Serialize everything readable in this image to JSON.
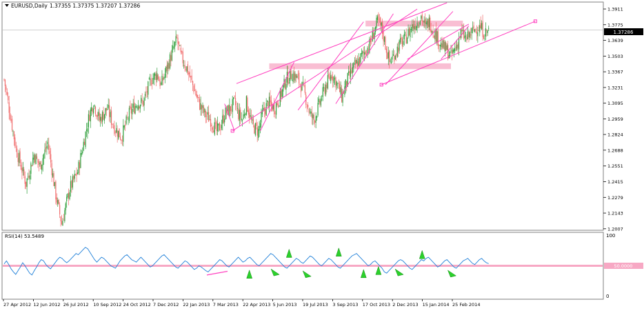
{
  "header": {
    "symbol_label": "EURUSD,Daily",
    "ohlc_text": "1.37355 1.37375 1.37207 1.37286"
  },
  "current_price_label": "1.37286",
  "rsi": {
    "label": "RSI(14) 53.5489",
    "level_label": "50.0000",
    "axis_ticks": [
      "100",
      "0"
    ]
  },
  "colors": {
    "bull": "#2e9e3a",
    "bear": "#f06a6a",
    "rsi_line": "#1e7fd8",
    "annotation": "#ff3fbf",
    "zone": "#f7a8c4",
    "arrow": "#2bd12b"
  },
  "chart_data": [
    {
      "type": "candlestick",
      "title": "EURUSD,Daily",
      "ylim": [
        1.2,
        1.3965
      ],
      "y_ticks": [
        1.3911,
        1.3775,
        1.3639,
        1.3503,
        1.3367,
        1.3231,
        1.3095,
        1.2959,
        1.2824,
        1.2688,
        1.2551,
        1.2415,
        1.2279,
        1.2143,
        1.2007
      ],
      "x_ticks": [
        "27 Apr 2012",
        "12 Jun 2012",
        "26 Jul 2012",
        "10 Sep 2012",
        "24 Oct 2012",
        "7 Dec 2012",
        "22 Jan 2013",
        "7 Mar 2013",
        "22 Apr 2013",
        "5 Jun 2013",
        "19 Jul 2013",
        "3 Sep 2013",
        "17 Oct 2013",
        "2 Dec 2013",
        "15 Jan 2014",
        "25 Feb 2014"
      ],
      "close_path": [
        [
          0,
          1.33
        ],
        [
          4,
          1.31
        ],
        [
          12,
          1.27
        ],
        [
          22,
          1.24
        ],
        [
          30,
          1.265
        ],
        [
          36,
          1.255
        ],
        [
          44,
          1.275
        ],
        [
          52,
          1.23
        ],
        [
          58,
          1.205
        ],
        [
          66,
          1.235
        ],
        [
          74,
          1.25
        ],
        [
          80,
          1.275
        ],
        [
          86,
          1.3
        ],
        [
          90,
          1.31
        ],
        [
          96,
          1.295
        ],
        [
          104,
          1.305
        ],
        [
          110,
          1.29
        ],
        [
          118,
          1.28
        ],
        [
          126,
          1.3
        ],
        [
          134,
          1.31
        ],
        [
          140,
          1.31
        ],
        [
          148,
          1.33
        ],
        [
          154,
          1.335
        ],
        [
          158,
          1.325
        ],
        [
          164,
          1.34
        ],
        [
          170,
          1.355
        ],
        [
          174,
          1.365
        ],
        [
          178,
          1.35
        ],
        [
          184,
          1.34
        ],
        [
          190,
          1.325
        ],
        [
          196,
          1.31
        ],
        [
          202,
          1.3
        ],
        [
          208,
          1.295
        ],
        [
          214,
          1.285
        ],
        [
          218,
          1.29
        ],
        [
          222,
          1.3
        ],
        [
          228,
          1.305
        ],
        [
          232,
          1.31
        ],
        [
          236,
          1.3
        ],
        [
          240,
          1.295
        ],
        [
          244,
          1.31
        ],
        [
          250,
          1.29
        ],
        [
          256,
          1.285
        ],
        [
          260,
          1.3
        ],
        [
          266,
          1.31
        ],
        [
          272,
          1.305
        ],
        [
          278,
          1.315
        ],
        [
          284,
          1.33
        ],
        [
          290,
          1.335
        ],
        [
          296,
          1.33
        ],
        [
          302,
          1.32
        ],
        [
          308,
          1.3
        ],
        [
          312,
          1.295
        ],
        [
          318,
          1.31
        ],
        [
          324,
          1.325
        ],
        [
          330,
          1.335
        ],
        [
          336,
          1.325
        ],
        [
          340,
          1.315
        ],
        [
          346,
          1.33
        ],
        [
          352,
          1.34
        ],
        [
          356,
          1.345
        ],
        [
          360,
          1.35
        ],
        [
          364,
          1.355
        ],
        [
          368,
          1.36
        ],
        [
          372,
          1.37
        ],
        [
          376,
          1.38
        ],
        [
          380,
          1.375
        ],
        [
          384,
          1.36
        ],
        [
          388,
          1.345
        ],
        [
          392,
          1.35
        ],
        [
          398,
          1.36
        ],
        [
          404,
          1.365
        ],
        [
          410,
          1.375
        ],
        [
          416,
          1.38
        ],
        [
          420,
          1.385
        ],
        [
          424,
          1.375
        ],
        [
          428,
          1.38
        ],
        [
          434,
          1.37
        ],
        [
          440,
          1.36
        ],
        [
          446,
          1.355
        ],
        [
          450,
          1.35
        ],
        [
          456,
          1.36
        ],
        [
          460,
          1.37
        ],
        [
          466,
          1.365
        ],
        [
          470,
          1.37
        ],
        [
          476,
          1.375
        ],
        [
          480,
          1.375
        ],
        [
          484,
          1.37
        ],
        [
          488,
          1.3729
        ]
      ]
    },
    {
      "type": "line",
      "title": "RSI(14) 53.5489",
      "ylim": [
        0,
        100
      ],
      "reference_level": 50,
      "values": [
        53,
        58,
        52,
        45,
        40,
        36,
        42,
        48,
        55,
        50,
        44,
        38,
        35,
        42,
        48,
        55,
        60,
        58,
        52,
        48,
        45,
        50,
        55,
        60,
        64,
        62,
        58,
        55,
        58,
        62,
        66,
        70,
        68,
        72,
        76,
        80,
        78,
        72,
        66,
        60,
        56,
        60,
        64,
        62,
        58,
        54,
        50,
        48,
        46,
        52,
        58,
        62,
        66,
        68,
        64,
        60,
        58,
        56,
        60,
        64,
        60,
        56,
        52,
        48,
        50,
        54,
        58,
        62,
        66,
        68,
        64,
        60,
        56,
        52,
        48,
        46,
        50,
        54,
        58,
        56,
        52,
        48,
        44,
        46,
        50,
        48,
        45,
        42,
        40,
        44,
        48,
        52,
        56,
        60,
        58,
        54,
        50,
        48,
        52,
        56,
        60,
        64,
        60,
        56,
        58,
        62,
        64,
        60,
        56,
        52,
        50,
        54,
        58,
        62,
        66,
        70,
        68,
        64,
        60,
        56,
        52,
        48,
        46,
        50,
        54,
        58,
        62,
        60,
        56,
        54,
        58,
        62,
        66,
        64,
        60,
        56,
        52,
        50,
        54,
        58,
        62,
        60,
        56,
        52,
        48,
        46,
        50,
        54,
        58,
        62,
        66,
        68,
        70,
        66,
        62,
        58,
        54,
        50,
        52,
        56,
        58,
        54,
        50,
        46,
        40,
        38,
        42,
        46,
        50,
        54,
        58,
        60,
        58,
        54,
        50,
        46,
        44,
        48,
        52,
        56,
        60,
        58,
        62,
        64,
        60,
        56,
        52,
        48,
        50,
        54,
        58,
        60,
        56,
        52,
        48,
        46,
        50,
        54,
        58,
        60,
        62,
        58,
        54,
        52,
        56,
        60,
        62,
        58,
        55,
        53.5
      ]
    }
  ]
}
